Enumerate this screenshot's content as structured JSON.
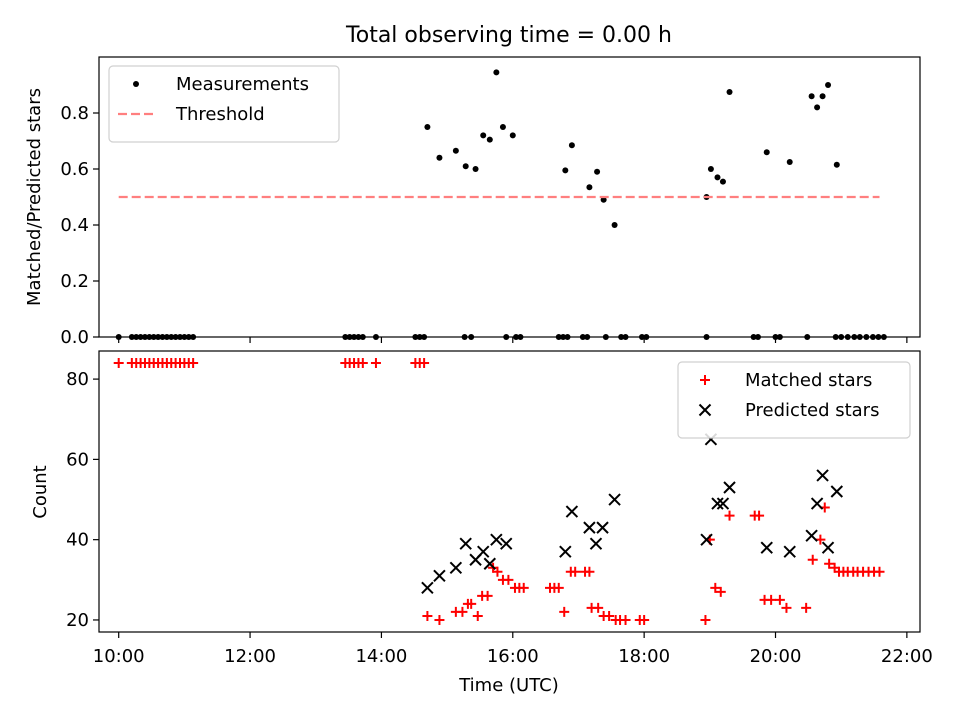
{
  "title": "Total observing time = 0.00 h",
  "chart_data": [
    {
      "type": "scatter",
      "ylabel": "Matched/Predicted stars",
      "xlabel": "",
      "xlim": [
        "09:42",
        "22:12"
      ],
      "ylim": [
        0,
        1
      ],
      "yticks": [
        0.0,
        0.2,
        0.4,
        0.6,
        0.8
      ],
      "ytick_labels": [
        "0.0",
        "0.2",
        "0.4",
        "0.6",
        "0.8"
      ],
      "grid": false,
      "legend": "upper left",
      "series": [
        {
          "name": "Measurements",
          "marker": "dot",
          "color": "#000000",
          "points": [
            [
              "10:00",
              0
            ],
            [
              "10:12",
              0
            ],
            [
              "10:16",
              0
            ],
            [
              "10:20",
              0
            ],
            [
              "10:24",
              0
            ],
            [
              "10:28",
              0
            ],
            [
              "10:32",
              0
            ],
            [
              "10:36",
              0
            ],
            [
              "10:40",
              0
            ],
            [
              "10:44",
              0
            ],
            [
              "10:48",
              0
            ],
            [
              "10:52",
              0
            ],
            [
              "10:56",
              0
            ],
            [
              "11:00",
              0
            ],
            [
              "11:04",
              0
            ],
            [
              "11:08",
              0
            ],
            [
              "13:27",
              0
            ],
            [
              "13:31",
              0
            ],
            [
              "13:35",
              0
            ],
            [
              "13:39",
              0
            ],
            [
              "13:43",
              0
            ],
            [
              "13:55",
              0
            ],
            [
              "14:31",
              0
            ],
            [
              "14:35",
              0
            ],
            [
              "14:39",
              0
            ],
            [
              "14:42",
              0.75
            ],
            [
              "14:53",
              0.64
            ],
            [
              "15:08",
              0.665
            ],
            [
              "15:17",
              0.61
            ],
            [
              "15:26",
              0.6
            ],
            [
              "15:33",
              0.72
            ],
            [
              "15:39",
              0.705
            ],
            [
              "15:45",
              0.945
            ],
            [
              "15:51",
              0.75
            ],
            [
              "16:00",
              0.72
            ],
            [
              "15:16",
              0
            ],
            [
              "15:22",
              0
            ],
            [
              "15:54",
              0
            ],
            [
              "16:03",
              0
            ],
            [
              "16:07",
              0
            ],
            [
              "16:42",
              0
            ],
            [
              "16:46",
              0
            ],
            [
              "16:50",
              0
            ],
            [
              "16:48",
              0.595
            ],
            [
              "16:54",
              0.685
            ],
            [
              "17:10",
              0.535
            ],
            [
              "17:17",
              0.59
            ],
            [
              "17:23",
              0.49
            ],
            [
              "17:33",
              0.4
            ],
            [
              "17:04",
              0
            ],
            [
              "17:08",
              0
            ],
            [
              "17:25",
              0
            ],
            [
              "17:39",
              0
            ],
            [
              "17:43",
              0
            ],
            [
              "17:58",
              0
            ],
            [
              "18:02",
              0
            ],
            [
              "18:57",
              0
            ],
            [
              "18:57",
              0.5
            ],
            [
              "19:01",
              0.6
            ],
            [
              "19:07",
              0.57
            ],
            [
              "19:12",
              0.555
            ],
            [
              "19:18",
              0.875
            ],
            [
              "19:40",
              0
            ],
            [
              "19:44",
              0
            ],
            [
              "19:52",
              0.66
            ],
            [
              "20:00",
              0
            ],
            [
              "20:04",
              0
            ],
            [
              "20:13",
              0.625
            ],
            [
              "20:29",
              0
            ],
            [
              "20:33",
              0.86
            ],
            [
              "20:38",
              0.82
            ],
            [
              "20:43",
              0.86
            ],
            [
              "20:48",
              0.9
            ],
            [
              "20:56",
              0.615
            ],
            [
              "20:55",
              0
            ],
            [
              "21:00",
              0
            ],
            [
              "21:06",
              0
            ],
            [
              "21:12",
              0
            ],
            [
              "21:17",
              0
            ],
            [
              "21:23",
              0
            ],
            [
              "21:29",
              0
            ],
            [
              "21:34",
              0
            ],
            [
              "21:39",
              0
            ]
          ]
        },
        {
          "name": "Threshold",
          "marker": "dashed-line",
          "color": "#ff7f7f",
          "points": [
            [
              "10:00",
              0.5
            ],
            [
              "21:35",
              0.5
            ]
          ]
        }
      ]
    },
    {
      "type": "scatter",
      "ylabel": "Count",
      "xlabel": "Time (UTC)",
      "xlim": [
        "09:42",
        "22:12"
      ],
      "ylim": [
        17,
        87
      ],
      "yticks": [
        20,
        40,
        60,
        80
      ],
      "ytick_labels": [
        "20",
        "40",
        "60",
        "80"
      ],
      "xticks": [
        "10:00",
        "12:00",
        "14:00",
        "16:00",
        "18:00",
        "20:00",
        "22:00"
      ],
      "xtick_labels": [
        "10:00",
        "12:00",
        "14:00",
        "16:00",
        "18:00",
        "20:00",
        "22:00"
      ],
      "grid": false,
      "legend": "upper right",
      "series": [
        {
          "name": "Matched stars",
          "marker": "plus",
          "color": "#ff0000",
          "points": [
            [
              "10:00",
              84
            ],
            [
              "10:12",
              84
            ],
            [
              "10:16",
              84
            ],
            [
              "10:20",
              84
            ],
            [
              "10:24",
              84
            ],
            [
              "10:28",
              84
            ],
            [
              "10:32",
              84
            ],
            [
              "10:36",
              84
            ],
            [
              "10:40",
              84
            ],
            [
              "10:44",
              84
            ],
            [
              "10:48",
              84
            ],
            [
              "10:52",
              84
            ],
            [
              "10:56",
              84
            ],
            [
              "11:00",
              84
            ],
            [
              "11:04",
              84
            ],
            [
              "11:08",
              84
            ],
            [
              "13:27",
              84
            ],
            [
              "13:31",
              84
            ],
            [
              "13:35",
              84
            ],
            [
              "13:39",
              84
            ],
            [
              "13:43",
              84
            ],
            [
              "13:55",
              84
            ],
            [
              "14:31",
              84
            ],
            [
              "14:35",
              84
            ],
            [
              "14:39",
              84
            ],
            [
              "14:42",
              21
            ],
            [
              "14:53",
              20
            ],
            [
              "15:08",
              22
            ],
            [
              "15:14",
              22
            ],
            [
              "15:19",
              24
            ],
            [
              "15:22",
              24
            ],
            [
              "15:28",
              21
            ],
            [
              "15:32",
              26
            ],
            [
              "15:37",
              26
            ],
            [
              "15:42",
              33
            ],
            [
              "15:46",
              32
            ],
            [
              "15:51",
              30
            ],
            [
              "15:56",
              30
            ],
            [
              "16:02",
              28
            ],
            [
              "16:06",
              28
            ],
            [
              "16:10",
              28
            ],
            [
              "16:34",
              28
            ],
            [
              "16:38",
              28
            ],
            [
              "16:42",
              28
            ],
            [
              "16:47",
              22
            ],
            [
              "16:53",
              32
            ],
            [
              "16:57",
              32
            ],
            [
              "17:06",
              32
            ],
            [
              "17:10",
              32
            ],
            [
              "17:12",
              23
            ],
            [
              "17:18",
              23
            ],
            [
              "17:23",
              21
            ],
            [
              "17:28",
              21
            ],
            [
              "17:34",
              20
            ],
            [
              "17:38",
              20
            ],
            [
              "17:43",
              20
            ],
            [
              "17:56",
              20
            ],
            [
              "18:00",
              20
            ],
            [
              "18:56",
              20
            ],
            [
              "19:00",
              40
            ],
            [
              "19:05",
              28
            ],
            [
              "19:10",
              27
            ],
            [
              "19:18",
              46
            ],
            [
              "19:41",
              46
            ],
            [
              "19:45",
              46
            ],
            [
              "19:50",
              25
            ],
            [
              "19:56",
              25
            ],
            [
              "20:04",
              25
            ],
            [
              "20:10",
              23
            ],
            [
              "20:28",
              23
            ],
            [
              "20:34",
              35
            ],
            [
              "20:41",
              40
            ],
            [
              "20:45",
              48
            ],
            [
              "20:49",
              34
            ],
            [
              "20:54",
              33
            ],
            [
              "20:58",
              32
            ],
            [
              "21:02",
              32
            ],
            [
              "21:06",
              32
            ],
            [
              "21:11",
              32
            ],
            [
              "21:15",
              32
            ],
            [
              "21:20",
              32
            ],
            [
              "21:25",
              32
            ],
            [
              "21:30",
              32
            ],
            [
              "21:35",
              32
            ]
          ]
        },
        {
          "name": "Predicted stars",
          "marker": "x",
          "color": "#000000",
          "points": [
            [
              "14:42",
              28
            ],
            [
              "14:53",
              31
            ],
            [
              "15:08",
              33
            ],
            [
              "15:17",
              39
            ],
            [
              "15:26",
              35
            ],
            [
              "15:33",
              37
            ],
            [
              "15:39",
              34
            ],
            [
              "15:45",
              40
            ],
            [
              "15:54",
              39
            ],
            [
              "16:48",
              37
            ],
            [
              "16:54",
              47
            ],
            [
              "17:10",
              43
            ],
            [
              "17:16",
              39
            ],
            [
              "17:22",
              43
            ],
            [
              "17:33",
              50
            ],
            [
              "18:57",
              40
            ],
            [
              "19:01",
              65
            ],
            [
              "19:07",
              49
            ],
            [
              "19:12",
              49
            ],
            [
              "19:18",
              53
            ],
            [
              "19:52",
              38
            ],
            [
              "20:13",
              37
            ],
            [
              "20:33",
              41
            ],
            [
              "20:38",
              49
            ],
            [
              "20:43",
              56
            ],
            [
              "20:48",
              38
            ],
            [
              "20:56",
              52
            ]
          ]
        }
      ]
    }
  ]
}
